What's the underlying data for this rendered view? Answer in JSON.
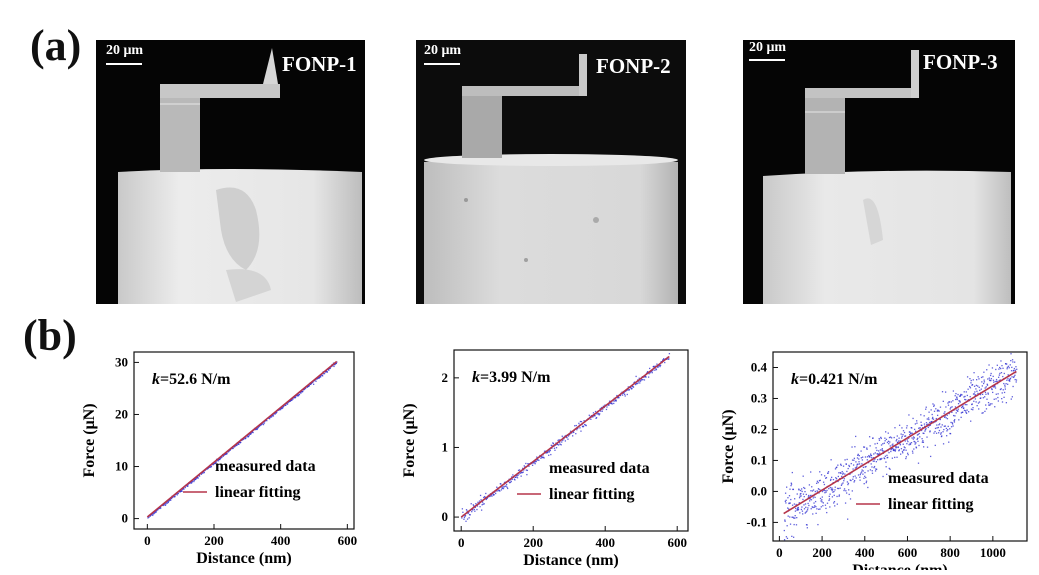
{
  "figure": {
    "panel_a_label": "(a)",
    "panel_b_label": "(b)",
    "probes": [
      {
        "name": "FONP-1",
        "scalebar": "20 μm"
      },
      {
        "name": "FONP-2",
        "scalebar": "20 μm"
      },
      {
        "name": "FONP-3",
        "scalebar": "20 μm"
      }
    ]
  },
  "colors": {
    "fit_line": "#b5354a",
    "measured_points": "#2a2ad0",
    "sem_background": "#050505"
  },
  "chart_data": [
    {
      "type": "scatter",
      "k_text": {
        "prefix": "k",
        "value": "=52.6 N/m"
      },
      "xlabel": "Distance (nm)",
      "ylabel": "Force (μN)",
      "xlim": [
        -40,
        620
      ],
      "ylim": [
        -2,
        32
      ],
      "xticks": [
        0,
        200,
        400,
        600
      ],
      "yticks": [
        0,
        10,
        20,
        30
      ],
      "legend": [
        "measured data",
        "linear fitting"
      ],
      "legend_position": "bottom-right",
      "fit": {
        "slope": 0.0526,
        "intercept": 0.3,
        "x_range": [
          0,
          568
        ]
      },
      "noise": 0.15
    },
    {
      "type": "scatter",
      "k_text": {
        "prefix": "k",
        "value": "=3.99 N/m"
      },
      "xlabel": "Distance (nm)",
      "ylabel": "Force (μN)",
      "xlim": [
        -20,
        630
      ],
      "ylim": [
        -0.2,
        2.4
      ],
      "xticks": [
        0,
        200,
        400,
        600
      ],
      "yticks": [
        0,
        1,
        2
      ],
      "legend": [
        "measured data",
        "linear fitting"
      ],
      "legend_position": "bottom-right",
      "fit": {
        "slope": 0.00399,
        "intercept": 0.0,
        "x_range": [
          0,
          578
        ]
      },
      "noise": 0.03
    },
    {
      "type": "scatter",
      "k_text": {
        "prefix": "k",
        "value": "=0.421 N/m"
      },
      "xlabel": "Distance (nm)",
      "ylabel": "Force (μN)",
      "xlim": [
        -30,
        1160
      ],
      "ylim": [
        -0.16,
        0.45
      ],
      "xticks": [
        0,
        200,
        400,
        600,
        800,
        1000
      ],
      "yticks": [
        -0.1,
        0.0,
        0.1,
        0.2,
        0.3,
        0.4
      ],
      "legend": [
        "measured data",
        "linear fitting"
      ],
      "legend_position": "bottom-right",
      "fit": {
        "slope": 0.000421,
        "intercept": -0.08,
        "x_range": [
          20,
          1110
        ]
      },
      "noise": 0.035
    }
  ]
}
